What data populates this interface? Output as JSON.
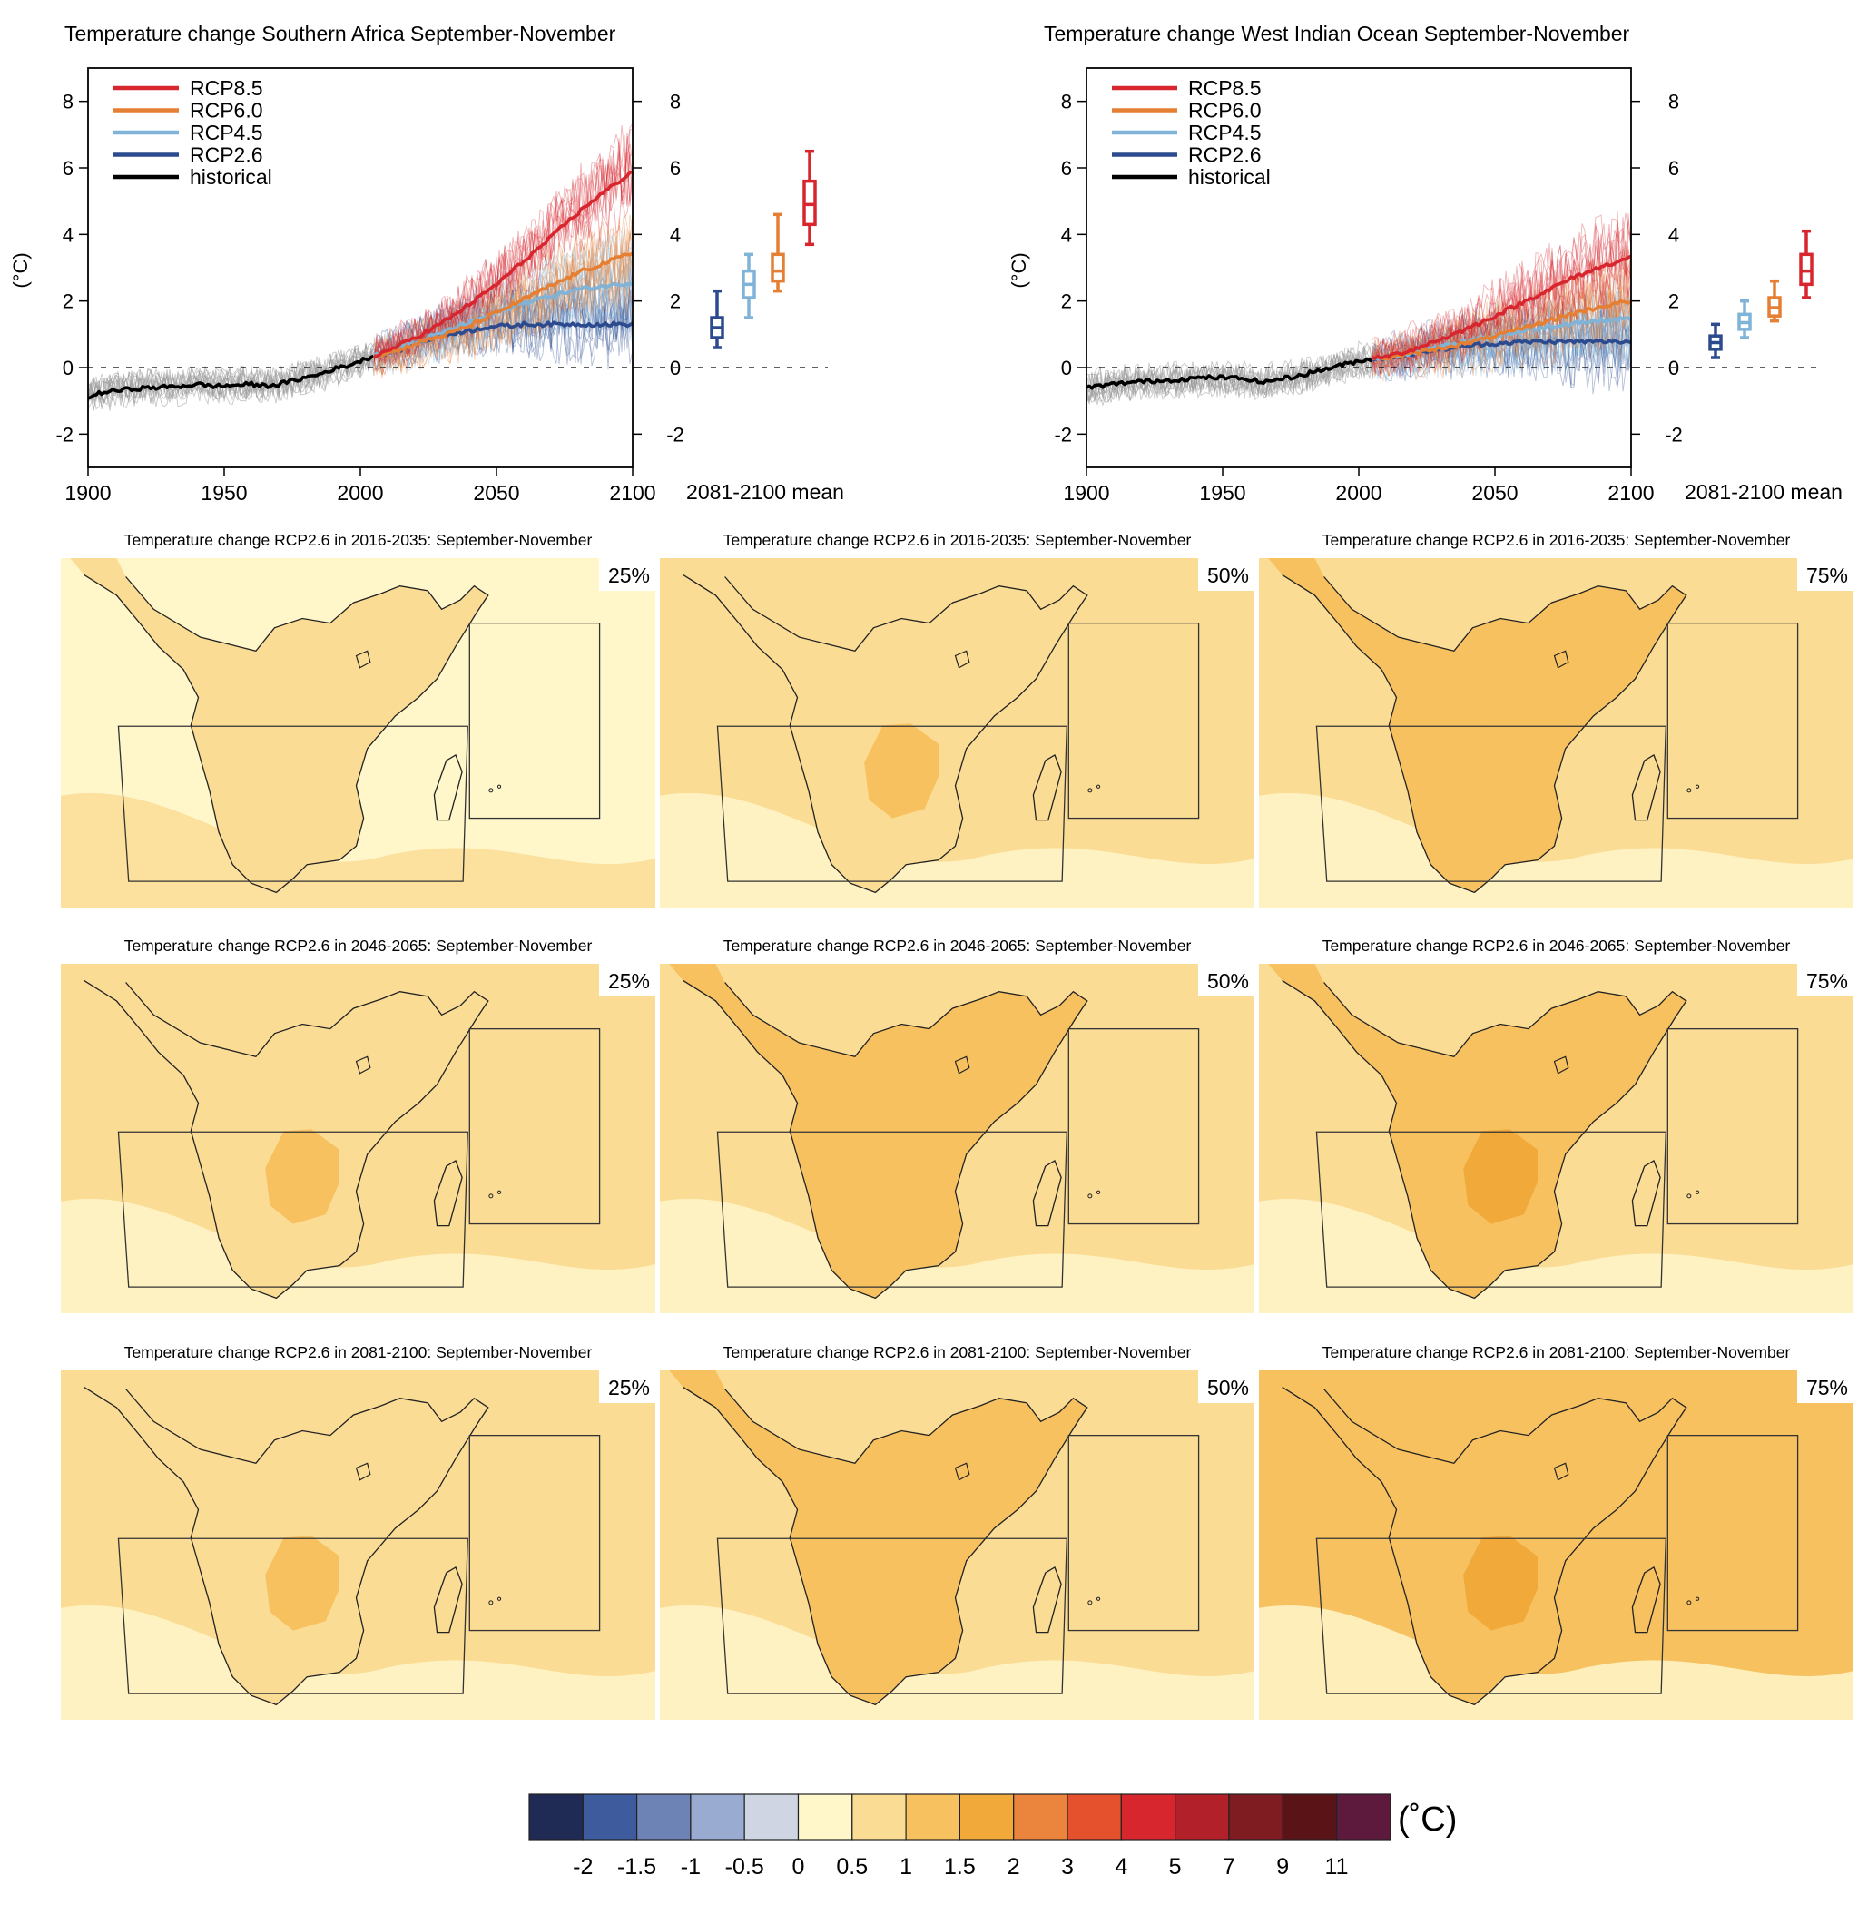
{
  "colors": {
    "rcp85": "#d7262e",
    "rcp60": "#e57f34",
    "rcp45": "#7fb3d8",
    "rcp26": "#2c4a8e",
    "historical": "#000000",
    "ensemble_hist": "#9a9a9a",
    "box": "#222222"
  },
  "chart_data": [
    {
      "type": "line",
      "title": "Temperature change Southern Africa September-November",
      "ylabel": "(°C)",
      "xlim": [
        1900,
        2100
      ],
      "ylim": [
        -3,
        9
      ],
      "x_ticks": [
        1900,
        1950,
        2000,
        2050,
        2100
      ],
      "y_ticks": [
        -2,
        0,
        2,
        4,
        6,
        8
      ],
      "zero_line": true,
      "legend": {
        "placement": "top-left",
        "entries": [
          "RCP8.5",
          "RCP6.0",
          "RCP4.5",
          "RCP2.6",
          "historical"
        ]
      },
      "series": [
        {
          "name": "historical",
          "x": [
            1900,
            1905,
            1910,
            1915,
            1920,
            1925,
            1930,
            1935,
            1940,
            1945,
            1950,
            1955,
            1960,
            1965,
            1970,
            1975,
            1980,
            1985,
            1990,
            1995,
            2000,
            2005
          ],
          "y": [
            -0.9,
            -0.75,
            -0.7,
            -0.65,
            -0.62,
            -0.6,
            -0.58,
            -0.55,
            -0.5,
            -0.55,
            -0.55,
            -0.52,
            -0.5,
            -0.55,
            -0.5,
            -0.4,
            -0.3,
            -0.2,
            -0.05,
            0.05,
            0.2,
            0.35
          ]
        },
        {
          "name": "RCP2.6",
          "x": [
            2005,
            2010,
            2015,
            2020,
            2025,
            2030,
            2035,
            2040,
            2045,
            2050,
            2055,
            2060,
            2065,
            2070,
            2075,
            2080,
            2085,
            2090,
            2095,
            2100
          ],
          "y": [
            0.35,
            0.45,
            0.55,
            0.7,
            0.85,
            0.95,
            1.05,
            1.1,
            1.2,
            1.25,
            1.25,
            1.3,
            1.3,
            1.3,
            1.3,
            1.3,
            1.3,
            1.3,
            1.3,
            1.3
          ]
        },
        {
          "name": "RCP4.5",
          "x": [
            2005,
            2010,
            2015,
            2020,
            2025,
            2030,
            2035,
            2040,
            2045,
            2050,
            2055,
            2060,
            2065,
            2070,
            2075,
            2080,
            2085,
            2090,
            2095,
            2100
          ],
          "y": [
            0.35,
            0.45,
            0.6,
            0.75,
            0.9,
            1.05,
            1.2,
            1.35,
            1.5,
            1.65,
            1.8,
            1.95,
            2.05,
            2.15,
            2.25,
            2.35,
            2.4,
            2.45,
            2.5,
            2.55
          ]
        },
        {
          "name": "RCP6.0",
          "x": [
            2005,
            2010,
            2015,
            2020,
            2025,
            2030,
            2035,
            2040,
            2045,
            2050,
            2055,
            2060,
            2065,
            2070,
            2075,
            2080,
            2085,
            2090,
            2095,
            2100
          ],
          "y": [
            0.35,
            0.45,
            0.55,
            0.7,
            0.85,
            0.95,
            1.1,
            1.25,
            1.45,
            1.65,
            1.85,
            2.05,
            2.25,
            2.45,
            2.65,
            2.85,
            3.0,
            3.15,
            3.3,
            3.45
          ]
        },
        {
          "name": "RCP8.5",
          "x": [
            2005,
            2010,
            2015,
            2020,
            2025,
            2030,
            2035,
            2040,
            2045,
            2050,
            2055,
            2060,
            2065,
            2070,
            2075,
            2080,
            2085,
            2090,
            2095,
            2100
          ],
          "y": [
            0.35,
            0.5,
            0.7,
            0.9,
            1.1,
            1.35,
            1.6,
            1.9,
            2.2,
            2.5,
            2.85,
            3.2,
            3.55,
            3.9,
            4.3,
            4.65,
            5.0,
            5.3,
            5.6,
            5.9
          ]
        }
      ],
      "box_panel": {
        "xlabel": "2081-2100 mean",
        "boxes": [
          {
            "name": "RCP2.6",
            "min": 0.6,
            "q1": 0.9,
            "median": 1.2,
            "q3": 1.5,
            "max": 2.3
          },
          {
            "name": "RCP4.5",
            "min": 1.5,
            "q1": 2.1,
            "median": 2.5,
            "q3": 2.9,
            "max": 3.4
          },
          {
            "name": "RCP6.0",
            "min": 2.3,
            "q1": 2.6,
            "median": 2.9,
            "q3": 3.4,
            "max": 4.6
          },
          {
            "name": "RCP8.5",
            "min": 3.7,
            "q1": 4.3,
            "median": 4.9,
            "q3": 5.6,
            "max": 6.5
          }
        ]
      }
    },
    {
      "type": "line",
      "title": "Temperature change West Indian Ocean September-November",
      "ylabel": "(°C)",
      "xlim": [
        1900,
        2100
      ],
      "ylim": [
        -3,
        9
      ],
      "x_ticks": [
        1900,
        1950,
        2000,
        2050,
        2100
      ],
      "y_ticks": [
        -2,
        0,
        2,
        4,
        6,
        8
      ],
      "zero_line": true,
      "legend": {
        "placement": "top-left",
        "entries": [
          "RCP8.5",
          "RCP6.0",
          "RCP4.5",
          "RCP2.6",
          "historical"
        ]
      },
      "series": [
        {
          "name": "historical",
          "x": [
            1900,
            1905,
            1910,
            1915,
            1920,
            1925,
            1930,
            1935,
            1940,
            1945,
            1950,
            1955,
            1960,
            1965,
            1970,
            1975,
            1980,
            1985,
            1990,
            1995,
            2000,
            2005
          ],
          "y": [
            -0.6,
            -0.55,
            -0.5,
            -0.45,
            -0.42,
            -0.4,
            -0.38,
            -0.35,
            -0.32,
            -0.3,
            -0.3,
            -0.32,
            -0.35,
            -0.45,
            -0.35,
            -0.3,
            -0.2,
            -0.1,
            0.0,
            0.1,
            0.2,
            0.25
          ]
        },
        {
          "name": "RCP2.6",
          "x": [
            2005,
            2010,
            2015,
            2020,
            2025,
            2030,
            2035,
            2040,
            2045,
            2050,
            2055,
            2060,
            2065,
            2070,
            2075,
            2080,
            2085,
            2090,
            2095,
            2100
          ],
          "y": [
            0.25,
            0.3,
            0.35,
            0.42,
            0.5,
            0.55,
            0.6,
            0.65,
            0.7,
            0.72,
            0.75,
            0.77,
            0.78,
            0.78,
            0.78,
            0.78,
            0.78,
            0.78,
            0.78,
            0.78
          ]
        },
        {
          "name": "RCP4.5",
          "x": [
            2005,
            2010,
            2015,
            2020,
            2025,
            2030,
            2035,
            2040,
            2045,
            2050,
            2055,
            2060,
            2065,
            2070,
            2075,
            2080,
            2085,
            2090,
            2095,
            2100
          ],
          "y": [
            0.25,
            0.3,
            0.38,
            0.45,
            0.55,
            0.62,
            0.7,
            0.8,
            0.88,
            0.95,
            1.02,
            1.1,
            1.17,
            1.23,
            1.3,
            1.35,
            1.38,
            1.42,
            1.45,
            1.48
          ]
        },
        {
          "name": "RCP6.0",
          "x": [
            2005,
            2010,
            2015,
            2020,
            2025,
            2030,
            2035,
            2040,
            2045,
            2050,
            2055,
            2060,
            2065,
            2070,
            2075,
            2080,
            2085,
            2090,
            2095,
            2100
          ],
          "y": [
            0.25,
            0.3,
            0.36,
            0.42,
            0.5,
            0.58,
            0.66,
            0.74,
            0.84,
            0.95,
            1.06,
            1.17,
            1.3,
            1.42,
            1.54,
            1.65,
            1.75,
            1.85,
            1.93,
            2.0
          ]
        },
        {
          "name": "RCP8.5",
          "x": [
            2005,
            2010,
            2015,
            2020,
            2025,
            2030,
            2035,
            2040,
            2045,
            2050,
            2055,
            2060,
            2065,
            2070,
            2075,
            2080,
            2085,
            2090,
            2095,
            2100
          ],
          "y": [
            0.25,
            0.33,
            0.42,
            0.55,
            0.7,
            0.85,
            1.0,
            1.18,
            1.36,
            1.55,
            1.75,
            1.95,
            2.15,
            2.35,
            2.55,
            2.75,
            2.9,
            3.05,
            3.2,
            3.3
          ]
        }
      ],
      "box_panel": {
        "xlabel": "2081-2100 mean",
        "boxes": [
          {
            "name": "RCP2.6",
            "min": 0.3,
            "q1": 0.55,
            "median": 0.75,
            "q3": 0.95,
            "max": 1.3
          },
          {
            "name": "RCP4.5",
            "min": 0.9,
            "q1": 1.15,
            "median": 1.35,
            "q3": 1.6,
            "max": 2.0
          },
          {
            "name": "RCP6.0",
            "min": 1.4,
            "q1": 1.55,
            "median": 1.8,
            "q3": 2.1,
            "max": 2.6
          },
          {
            "name": "RCP8.5",
            "min": 2.1,
            "q1": 2.5,
            "median": 2.9,
            "q3": 3.4,
            "max": 4.1
          }
        ]
      }
    },
    {
      "type": "heatmap",
      "maps": [
        {
          "title": "Temperature change RCP2.6 in 2016-2035: September-November",
          "percentile": "25%",
          "base_level": 5,
          "land_level": 6,
          "core_level": 6
        },
        {
          "title": "Temperature change RCP2.6 in 2016-2035: September-November",
          "percentile": "50%",
          "base_level": 6,
          "land_level": 6,
          "core_level": 7
        },
        {
          "title": "Temperature change RCP2.6 in 2016-2035: September-November",
          "percentile": "75%",
          "base_level": 6,
          "land_level": 7,
          "core_level": 7
        },
        {
          "title": "Temperature change RCP2.6 in 2046-2065: September-November",
          "percentile": "25%",
          "base_level": 6,
          "land_level": 6,
          "core_level": 7
        },
        {
          "title": "Temperature change RCP2.6 in 2046-2065: September-November",
          "percentile": "50%",
          "base_level": 6,
          "land_level": 7,
          "core_level": 7
        },
        {
          "title": "Temperature change RCP2.6 in 2046-2065: September-November",
          "percentile": "75%",
          "base_level": 6,
          "land_level": 7,
          "core_level": 8
        },
        {
          "title": "Temperature change RCP2.6 in 2081-2100: September-November",
          "percentile": "25%",
          "base_level": 6,
          "land_level": 6,
          "core_level": 7
        },
        {
          "title": "Temperature change RCP2.6 in 2081-2100: September-November",
          "percentile": "50%",
          "base_level": 6,
          "land_level": 7,
          "core_level": 7
        },
        {
          "title": "Temperature change RCP2.6 in 2081-2100: September-November",
          "percentile": "75%",
          "base_level": 7,
          "land_level": 7,
          "core_level": 8
        }
      ],
      "colorbar": {
        "unit": "(˚C)",
        "colors": [
          "#1f2a55",
          "#3e5b9d",
          "#6d82b5",
          "#9aabd1",
          "#cfd5e3",
          "#fff6ca",
          "#fbdc95",
          "#f7c160",
          "#f1a93a",
          "#eb853d",
          "#e5512d",
          "#d7262e",
          "#b2212a",
          "#7e1c22",
          "#5a1418",
          "#5d1a3c"
        ],
        "labels": [
          "-2",
          "-1.5",
          "-1",
          "-0.5",
          "0",
          "0.5",
          "1",
          "1.5",
          "2",
          "3",
          "4",
          "5",
          "7",
          "9",
          "11"
        ]
      }
    }
  ]
}
